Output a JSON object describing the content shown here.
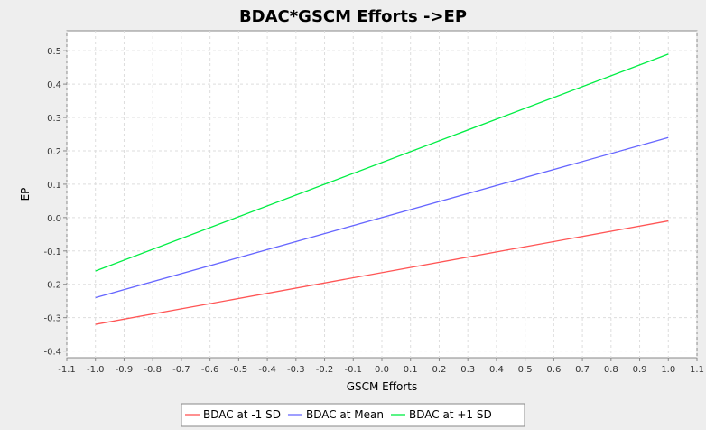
{
  "chart_data": {
    "type": "line",
    "title": "BDAC*GSCM Efforts ->EP",
    "xlabel": "GSCM Efforts",
    "ylabel": "EP",
    "xlim": [
      -1.1,
      1.1
    ],
    "ylim": [
      -0.42,
      0.56
    ],
    "xticks": [
      "-1.1",
      "-1.0",
      "-0.9",
      "-0.8",
      "-0.7",
      "-0.6",
      "-0.5",
      "-0.4",
      "-0.3",
      "-0.2",
      "-0.1",
      "0.0",
      "0.1",
      "0.2",
      "0.3",
      "0.4",
      "0.5",
      "0.6",
      "0.7",
      "0.8",
      "0.9",
      "1.0",
      "1.1"
    ],
    "yticks": [
      "-0.4",
      "-0.3",
      "-0.2",
      "-0.1",
      "0.0",
      "0.1",
      "0.2",
      "0.3",
      "0.4",
      "0.5"
    ],
    "grid": true,
    "legend_position": "bottom",
    "x": [
      -1.0,
      1.0
    ],
    "series": [
      {
        "name": "BDAC at -1 SD",
        "color": "#ff5555",
        "values": [
          -0.32,
          -0.01
        ]
      },
      {
        "name": "BDAC at Mean",
        "color": "#6666ff",
        "values": [
          -0.24,
          0.24
        ]
      },
      {
        "name": "BDAC at +1 SD",
        "color": "#00ee44",
        "values": [
          -0.16,
          0.49
        ]
      }
    ]
  }
}
